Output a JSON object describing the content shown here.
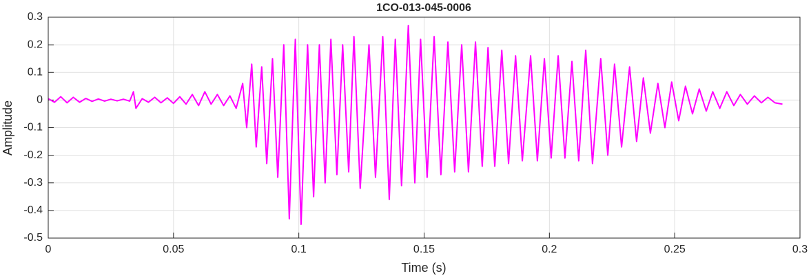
{
  "chart_data": {
    "type": "line",
    "title": "1CO-013-045-0006",
    "xlabel": "Time (s)",
    "ylabel": "Amplitude",
    "xlim": [
      0,
      0.3
    ],
    "ylim": [
      -0.5,
      0.3
    ],
    "xticks": [
      0,
      0.05,
      0.1,
      0.15,
      0.2,
      0.25,
      0.3
    ],
    "yticks": [
      -0.5,
      -0.4,
      -0.3,
      -0.2,
      -0.1,
      0,
      0.1,
      0.2,
      0.3
    ],
    "grid": true,
    "series": [
      {
        "color": "#ff00ff",
        "x": [
          0,
          0.0025,
          0.005,
          0.0075,
          0.01,
          0.0125,
          0.015,
          0.0175,
          0.02,
          0.0225,
          0.025,
          0.0275,
          0.03,
          0.0325,
          0.034,
          0.035,
          0.0375,
          0.04,
          0.0425,
          0.045,
          0.0475,
          0.05,
          0.0525,
          0.055,
          0.0575,
          0.06,
          0.0625,
          0.065,
          0.0675,
          0.07,
          0.0725,
          0.075,
          0.0776,
          0.0792,
          0.0812,
          0.083,
          0.0852,
          0.0872,
          0.0895,
          0.0916,
          0.094,
          0.0962,
          0.0986,
          0.1009,
          0.1035,
          0.1059,
          0.1082,
          0.1105,
          0.1128,
          0.1152,
          0.1175,
          0.1199,
          0.122,
          0.1245,
          0.128,
          0.1306,
          0.1335,
          0.1361,
          0.1385,
          0.141,
          0.1437,
          0.1463,
          0.1486,
          0.1512,
          0.154,
          0.1567,
          0.1595,
          0.1622,
          0.165,
          0.1677,
          0.1705,
          0.1732,
          0.1755,
          0.1782,
          0.181,
          0.1837,
          0.1865,
          0.1892,
          0.1925,
          0.1952,
          0.198,
          0.2007,
          0.2035,
          0.2062,
          0.209,
          0.2117,
          0.2145,
          0.2172,
          0.2205,
          0.2233,
          0.226,
          0.2288,
          0.232,
          0.2348,
          0.2375,
          0.2403,
          0.2433,
          0.2461,
          0.2488,
          0.2516,
          0.2543,
          0.2571,
          0.2598,
          0.2626,
          0.2652,
          0.268,
          0.2708,
          0.2736,
          0.2762,
          0.279,
          0.2818,
          0.2846,
          0.2872,
          0.29,
          0.293
        ],
        "values": [
          0.005,
          -0.008,
          0.012,
          -0.01,
          0.01,
          -0.008,
          0.006,
          -0.005,
          0.004,
          -0.004,
          0.003,
          -0.003,
          0.003,
          -0.004,
          0.03,
          -0.03,
          0.005,
          -0.008,
          0.01,
          -0.01,
          0.008,
          -0.012,
          0.012,
          -0.015,
          0.02,
          -0.02,
          0.03,
          -0.015,
          0.02,
          -0.02,
          0.015,
          -0.03,
          0.06,
          -0.1,
          0.13,
          -0.17,
          0.12,
          -0.23,
          0.15,
          -0.28,
          0.2,
          -0.43,
          0.22,
          -0.45,
          0.2,
          -0.35,
          0.2,
          -0.3,
          0.22,
          -0.27,
          0.2,
          -0.26,
          0.23,
          -0.32,
          0.2,
          -0.28,
          0.23,
          -0.36,
          0.22,
          -0.31,
          0.27,
          -0.3,
          0.22,
          -0.28,
          0.23,
          -0.27,
          0.21,
          -0.26,
          0.2,
          -0.26,
          0.21,
          -0.24,
          0.19,
          -0.24,
          0.18,
          -0.23,
          0.16,
          -0.22,
          0.16,
          -0.22,
          0.15,
          -0.21,
          0.16,
          -0.21,
          0.14,
          -0.22,
          0.18,
          -0.23,
          0.15,
          -0.2,
          0.13,
          -0.17,
          0.12,
          -0.15,
          0.08,
          -0.12,
          0.06,
          -0.1,
          0.065,
          -0.075,
          0.05,
          -0.05,
          0.04,
          -0.04,
          0.03,
          -0.03,
          0.03,
          -0.02,
          0.02,
          -0.015,
          0.015,
          -0.01,
          0.01,
          -0.01,
          -0.015
        ]
      }
    ]
  }
}
